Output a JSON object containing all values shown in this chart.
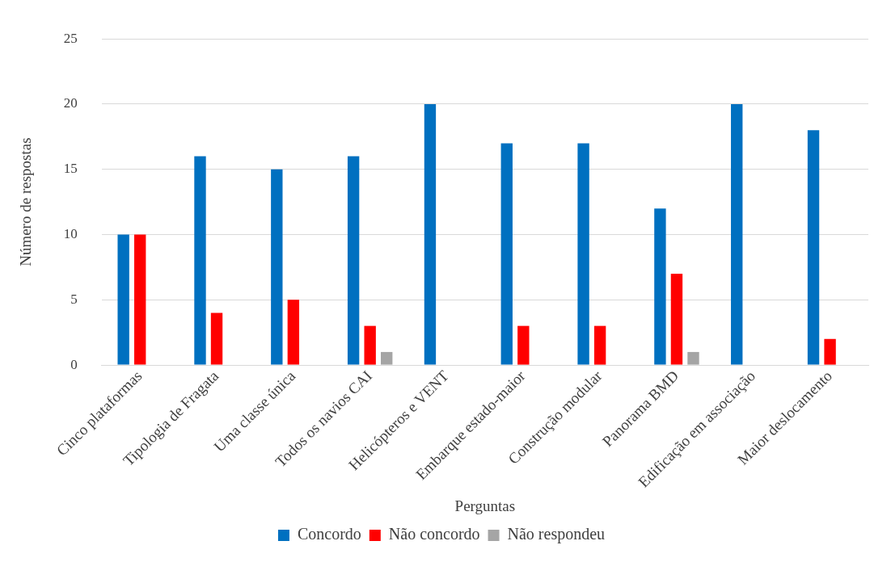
{
  "chart_data": {
    "type": "bar",
    "xlabel": "Perguntas",
    "ylabel": "Número de respostas",
    "categories": [
      "Cinco plataformas",
      "Tipologia de Fragata",
      "Uma classe única",
      "Todos os navios CAI",
      "Helicópteros e VENT",
      "Embarque estado-maior",
      "Construção modular",
      "Panorama BMD",
      "Edificação em associação",
      "Maior deslocamento"
    ],
    "series": [
      {
        "name": "Concordo",
        "color": "#0070c0",
        "values": [
          10,
          16,
          15,
          16,
          20,
          17,
          17,
          12,
          20,
          18
        ]
      },
      {
        "name": "Não concordo",
        "color": "#ff0000",
        "values": [
          10,
          4,
          5,
          3,
          0,
          3,
          3,
          7,
          0,
          2
        ]
      },
      {
        "name": "Não respondeu",
        "color": "#a5a5a5",
        "values": [
          0,
          0,
          0,
          1,
          0,
          0,
          0,
          1,
          0,
          0
        ]
      }
    ],
    "ylim": [
      0,
      25
    ],
    "yticks": [
      0,
      5,
      10,
      15,
      20,
      25
    ],
    "grid": "y",
    "legend": "bottom"
  }
}
